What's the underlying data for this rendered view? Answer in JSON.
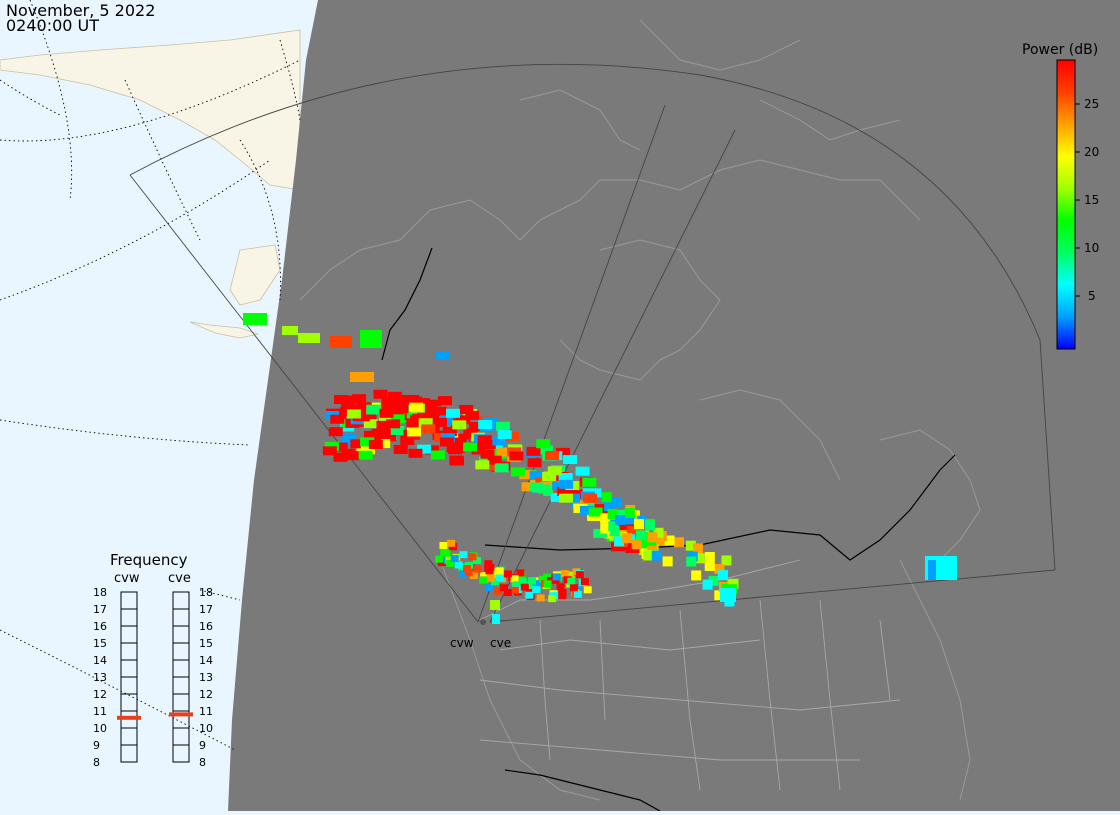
{
  "header": {
    "date": "November, 5 2022",
    "time": "0240:00 UT"
  },
  "colorbar": {
    "title": "Power (dB)",
    "ticks": [
      "25",
      "20",
      "15",
      "10",
      "5"
    ],
    "gradient": [
      "#0000ff",
      "#00a0ff",
      "#00ffff",
      "#00ff60",
      "#00ff00",
      "#a0ff00",
      "#ffff00",
      "#ffa000",
      "#ff4000",
      "#ff0000"
    ]
  },
  "frequency": {
    "title": "Frequency",
    "radars": [
      {
        "name": "cvw",
        "value_mhz": 10.6
      },
      {
        "name": "cve",
        "value_mhz": 10.8
      }
    ],
    "left_ticks": [
      "18",
      "17",
      "16",
      "15",
      "14",
      "13",
      "12",
      "11",
      "10",
      "9",
      "8"
    ],
    "right_ticks": [
      "18",
      "17",
      "16",
      "15",
      "14",
      "13",
      "12",
      "11",
      "10",
      "9",
      "8"
    ],
    "marker_color": "#e8401a"
  },
  "radar_sites": [
    "cvw",
    "cve"
  ],
  "colors": {
    "night": "#7a7a7a",
    "day_ocean": "#eaf6ff",
    "day_land": "#f8f5e6",
    "coast": "#9a9a9a",
    "border": "#000000"
  }
}
